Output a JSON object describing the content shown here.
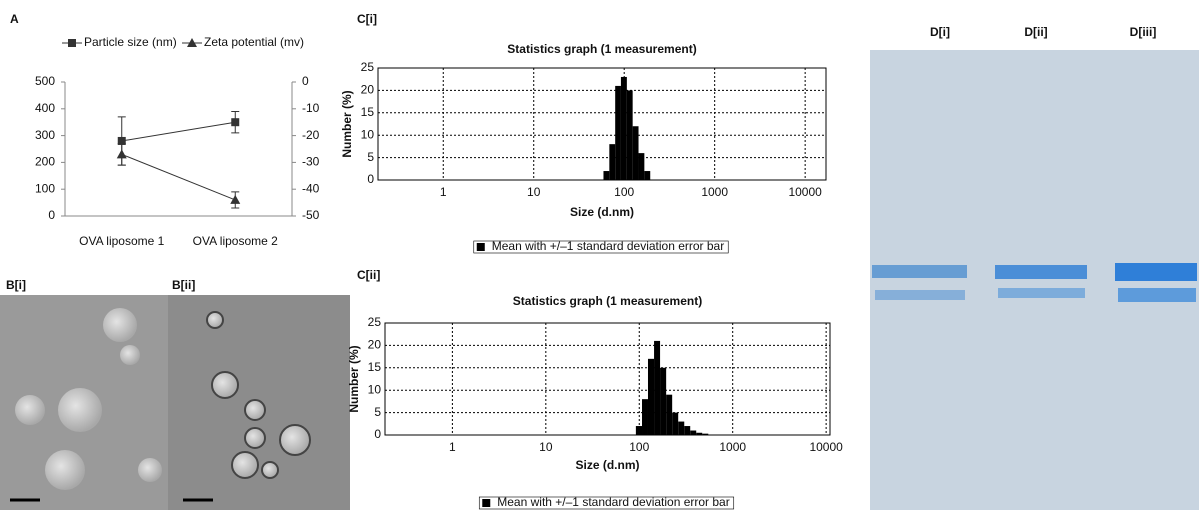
{
  "chart_data": [
    {
      "type": "line",
      "panel_label": "A",
      "categories": [
        "OVA liposome 1",
        "OVA liposome 2"
      ],
      "series": [
        {
          "name": "Particle size (nm)",
          "color": "#333333",
          "marker": "square",
          "values": [
            280,
            350
          ],
          "errors": [
            90,
            40
          ]
        },
        {
          "name": "Zeta potential (mv)",
          "color": "#333333",
          "marker": "triangle",
          "axis": "y2",
          "values": [
            -27,
            -44
          ],
          "errors": [
            4,
            3
          ]
        }
      ],
      "ylim": [
        0,
        500
      ],
      "yticks": [
        0,
        100,
        200,
        300,
        400,
        500
      ],
      "y2lim": [
        -50,
        0
      ],
      "y2ticks": [
        -50,
        -40,
        -30,
        -20,
        -10,
        0
      ]
    },
    {
      "type": "histogram",
      "panel_label": "C[i]",
      "title": "Statistics graph (1 measurement)",
      "xlabel": "Size (d.nm)",
      "ylabel": "Number (%)",
      "log_x": true,
      "grid": true,
      "bins": [
        59,
        68.5,
        79.5,
        92,
        107,
        124,
        144,
        167,
        194
      ],
      "series": [
        {
          "name": "Mean with +/–1 standard deviation error bar",
          "color": "#000000",
          "values": [
            2,
            8,
            21,
            23,
            20,
            12,
            6,
            2
          ]
        }
      ],
      "xlim": [
        0.19,
        17000
      ],
      "xticks": [
        1,
        10,
        100,
        1000,
        10000
      ],
      "ylim": [
        0,
        25
      ],
      "yticks": [
        0,
        5,
        10,
        15,
        20,
        25
      ]
    },
    {
      "type": "histogram",
      "panel_label": "C[ii]",
      "title": "Statistics graph (1 measurement)",
      "xlabel": "Size (d.nm)",
      "ylabel": "Number (%)",
      "log_x": true,
      "grid": true,
      "bins": [
        92,
        107,
        124,
        144,
        167,
        194,
        225,
        261,
        303,
        351,
        407,
        472,
        548
      ],
      "series": [
        {
          "name": "Mean with +/–1 standard deviation error bar",
          "color": "#000000",
          "values": [
            2,
            8,
            17,
            21,
            15,
            9,
            5,
            3,
            2,
            1,
            0.5,
            0.3
          ]
        }
      ],
      "xlim": [
        0.19,
        11000
      ],
      "xticks": [
        1,
        10,
        100,
        1000,
        10000
      ],
      "ylim": [
        0,
        25
      ],
      "yticks": [
        0,
        5,
        10,
        15,
        20,
        25
      ]
    }
  ],
  "micrographs": {
    "labels": [
      "B[i]",
      "B[ii]"
    ]
  },
  "gel": {
    "lane_labels": [
      "D[i]",
      "D[ii]",
      "D[iii]"
    ]
  }
}
